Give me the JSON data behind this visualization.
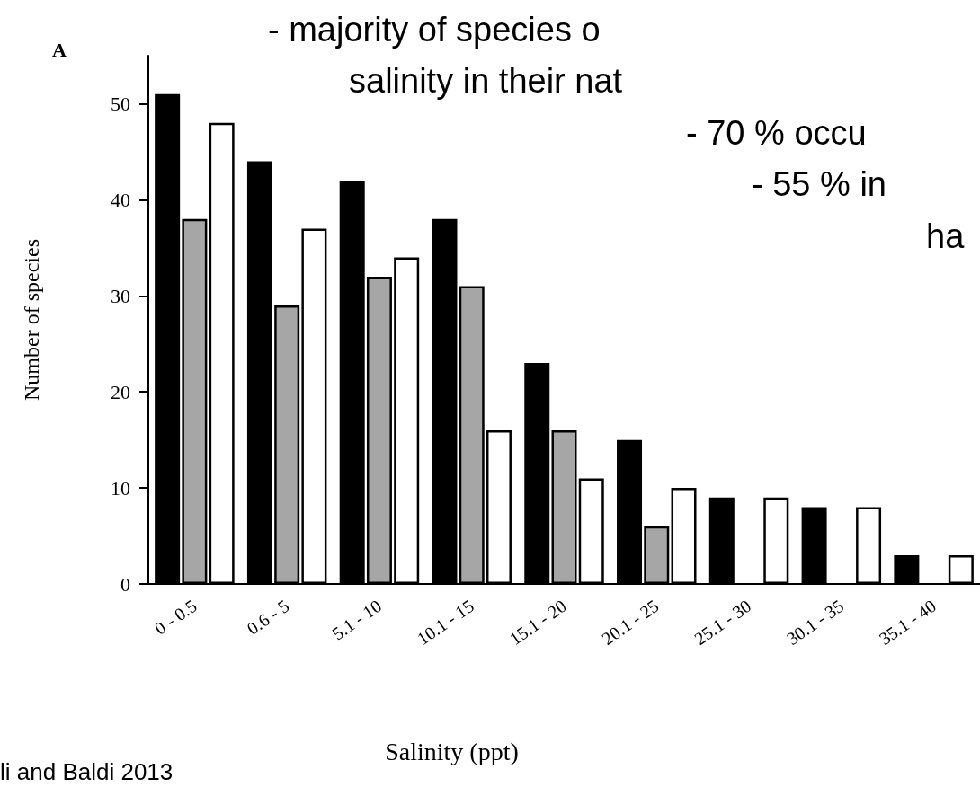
{
  "chart_data": {
    "type": "bar",
    "xlabel": "Salinity (ppt)",
    "ylabel": "Number of species",
    "categories": [
      "0 - 0.5",
      "0.6 - 5",
      "5.1 - 10",
      "10.1 - 15",
      "15.1 - 20",
      "20.1 - 25",
      "25.1 - 30",
      "30.1 - 35",
      "35.1 - 40"
    ],
    "series": [
      {
        "color": "#000000",
        "values": [
          51,
          44,
          42,
          38,
          23,
          15,
          9,
          8,
          3
        ]
      },
      {
        "color": "#a6a6a6",
        "values": [
          38,
          29,
          32,
          31,
          16,
          6,
          null,
          null,
          null
        ]
      },
      {
        "color": "#ffffff",
        "values": [
          48,
          37,
          34,
          16,
          11,
          10,
          9,
          8,
          3
        ]
      }
    ],
    "ylim": [
      0,
      55
    ],
    "yticks": [
      0,
      10,
      20,
      30,
      40,
      50
    ],
    "grid": false,
    "annotations": [
      "A",
      "- majority of species o",
      "salinity in their nat",
      "- 70 % occu",
      "- 55 % in",
      "ha",
      "li and Baldi 2013"
    ]
  }
}
